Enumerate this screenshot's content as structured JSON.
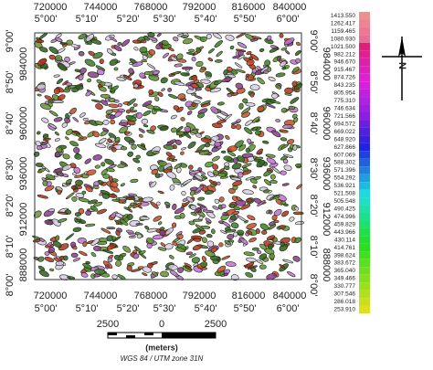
{
  "top_axis": {
    "utm": [
      "720000",
      "744000",
      "768000",
      "792000",
      "816000",
      "840000"
    ],
    "degrees": [
      "5°00'",
      "5°10'",
      "5°20'",
      "5°30'",
      "5°40'",
      "5°50'",
      "6°00'"
    ]
  },
  "bottom_axis": {
    "utm": [
      "720000",
      "744000",
      "768000",
      "792000",
      "816000",
      "840000"
    ],
    "degrees": [
      "5°00'",
      "5°10'",
      "5°20'",
      "5°30'",
      "5°40'",
      "5°50'",
      "6°00'"
    ]
  },
  "left_axis": {
    "degrees": [
      "9°00'",
      "8°50'",
      "8°40'",
      "8°30'",
      "8°20'",
      "8°10'",
      "8°00'"
    ],
    "utm": [
      "984000",
      "960000",
      "936000",
      "912000",
      "888000"
    ]
  },
  "right_axis": {
    "degrees": [
      "9°00'",
      "8°50'",
      "8°40'",
      "8°30'",
      "8°20'",
      "8°10'",
      "8°00'"
    ],
    "utm": [
      "984000",
      "960000",
      "936000",
      "912000",
      "888000"
    ]
  },
  "legend": {
    "values": [
      "1413.550",
      "1262.417",
      "1159.465",
      "1080.930",
      "1021.500",
      "982.212",
      "946.670",
      "915.467",
      "874.726",
      "843.235",
      "805.954",
      "775.310",
      "746.634",
      "721.566",
      "694.572",
      "669.022",
      "648.920",
      "627.866",
      "607.069",
      "588.302",
      "571.396",
      "554.292",
      "536.921",
      "521.508",
      "505.548",
      "490.425",
      "474.996",
      "459.829",
      "443.966",
      "430.114",
      "414.761",
      "398.624",
      "383.672",
      "365.040",
      "349.466",
      "330.777",
      "307.546",
      "286.018",
      "253.910"
    ]
  },
  "scale_bar": {
    "labels": [
      "2500",
      "0",
      "2500"
    ],
    "unit": "(meters)"
  },
  "north_label": "N",
  "projection": "WGS 84 / UTM zone 31N"
}
